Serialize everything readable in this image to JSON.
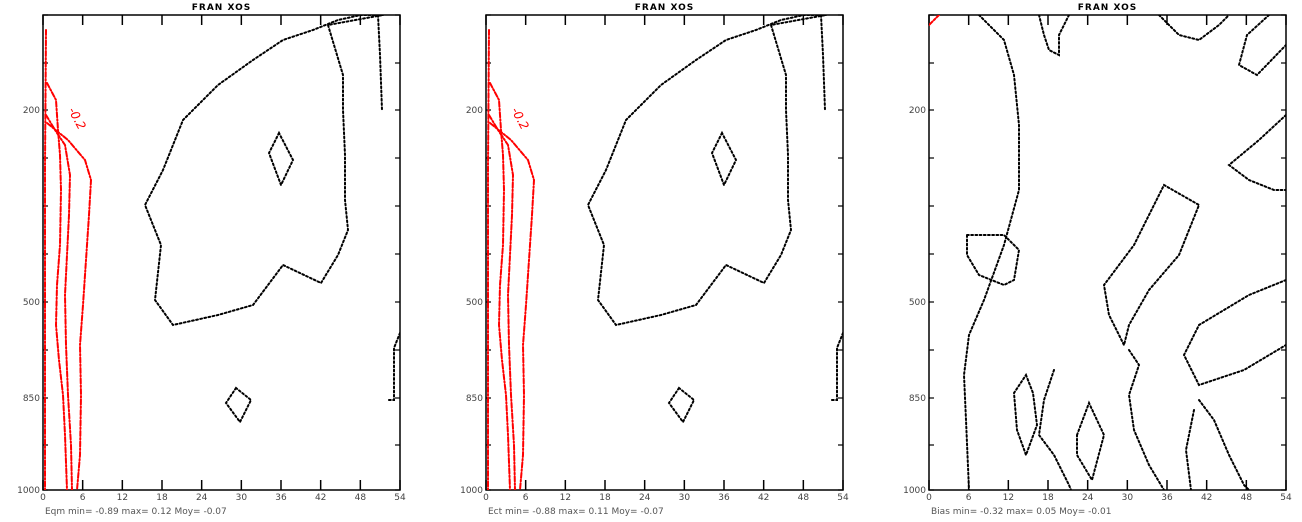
{
  "colors": {
    "frame": "#000000",
    "negative_contour": "#ff0000",
    "zero_contour": "#000000",
    "background": "#ffffff"
  },
  "chart_data": [
    {
      "type": "contour",
      "title": "FRAN XOS",
      "stats_text": "Eqm min=   -0.89 max=   0.12 Moy=   -0.07",
      "x_ticks": [
        "0",
        "6",
        "12",
        "18",
        "24",
        "30",
        "36",
        "42",
        "48",
        "54"
      ],
      "y_ticks": [
        "200",
        "500",
        "850",
        "1000"
      ],
      "xlim": [
        0,
        54
      ],
      "ylim_pressure": [
        1000,
        0
      ],
      "contour_labels": [
        "-0.2"
      ],
      "min": -0.89,
      "max": 0.12,
      "mean": -0.07
    },
    {
      "type": "contour",
      "title": "FRAN XOS",
      "stats_text": "Ect min=   -0.88 max=   0.11 Moy=   -0.07",
      "x_ticks": [
        "0",
        "6",
        "12",
        "18",
        "24",
        "30",
        "36",
        "42",
        "48",
        "54"
      ],
      "y_ticks": [
        "200",
        "500",
        "850",
        "1000"
      ],
      "xlim": [
        0,
        54
      ],
      "ylim_pressure": [
        1000,
        0
      ],
      "contour_labels": [
        "-0.2"
      ],
      "min": -0.88,
      "max": 0.11,
      "mean": -0.07
    },
    {
      "type": "contour",
      "title": "FRAN XOS",
      "stats_text": "Bias min=   -0.32 max=   0.05 Moy=   -0.01",
      "x_ticks": [
        "0",
        "6",
        "12",
        "18",
        "24",
        "30",
        "36",
        "42",
        "48",
        "54"
      ],
      "y_ticks": [
        "200",
        "500",
        "850",
        "1000"
      ],
      "xlim": [
        0,
        54
      ],
      "ylim_pressure": [
        1000,
        0
      ],
      "contour_labels": [],
      "min": -0.32,
      "max": 0.05,
      "mean": -0.01
    }
  ]
}
